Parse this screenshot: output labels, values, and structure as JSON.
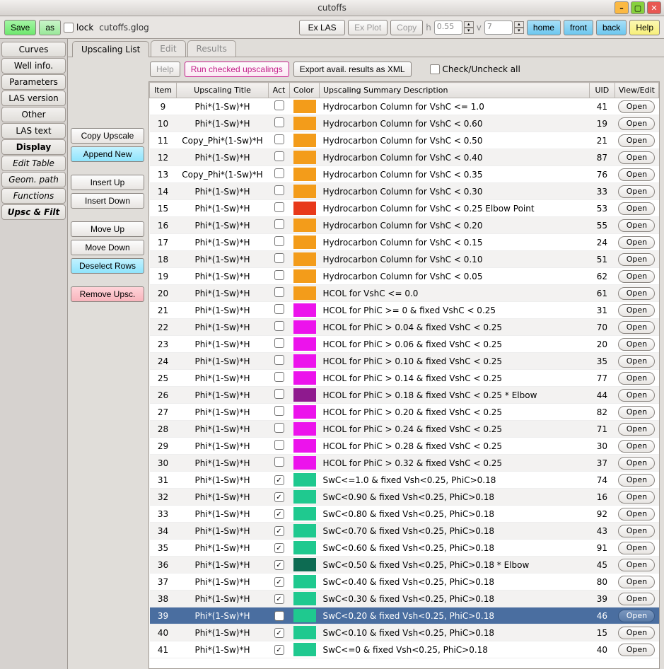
{
  "window": {
    "title": "cutoffs"
  },
  "toolbar": {
    "save": "Save",
    "as": "as",
    "lock": "lock",
    "filename": "cutoffs.glog",
    "exLas": "Ex LAS",
    "exPlot": "Ex Plot",
    "copy": "Copy",
    "h_label": "h",
    "h_value": "0.55",
    "v_label": "v",
    "v_value": "7",
    "home": "home",
    "front": "front",
    "back": "back",
    "help": "Help"
  },
  "nav": {
    "items": [
      {
        "label": "Curves",
        "italic": false,
        "active": false
      },
      {
        "label": "Well info.",
        "italic": false,
        "active": false
      },
      {
        "label": "Parameters",
        "italic": false,
        "active": false
      },
      {
        "label": "LAS version",
        "italic": false,
        "active": false
      },
      {
        "label": "Other",
        "italic": false,
        "active": false
      },
      {
        "label": "LAS text",
        "italic": false,
        "active": false
      },
      {
        "label": "Display",
        "italic": false,
        "active": true
      },
      {
        "label": "Edit Table",
        "italic": true,
        "active": false
      },
      {
        "label": "Geom. path",
        "italic": true,
        "active": false
      },
      {
        "label": "Functions",
        "italic": true,
        "active": false
      },
      {
        "label": "Upsc & Filt",
        "italic": true,
        "active": true
      }
    ]
  },
  "tabs": {
    "items": [
      "Upscaling List",
      "Edit",
      "Results"
    ],
    "active": 0
  },
  "side": {
    "copyUpscale": "Copy Upscale",
    "appendNew": "Append New",
    "insertUp": "Insert Up",
    "insertDown": "Insert Down",
    "moveUp": "Move Up",
    "moveDown": "Move Down",
    "deselectRows": "Deselect Rows",
    "removeUpsc": "Remove Upsc."
  },
  "contentToolbar": {
    "help": "Help",
    "run": "Run checked upscalings",
    "export": "Export avail. results as XML",
    "checkAll": "Check/Uncheck all"
  },
  "table": {
    "headers": {
      "item": "Item",
      "title": "Upscaling Title",
      "act": "Act",
      "color": "Color",
      "summary": "Upscaling Summary Description",
      "uid": "UID",
      "view": "View/Edit"
    },
    "openLabel": "Open",
    "selectedItem": 39,
    "rows": [
      {
        "item": 9,
        "title": "Phi*(1-Sw)*H",
        "act": false,
        "color": "#f39c1a",
        "summary": "Hydrocarbon Column for VshC <= 1.0",
        "uid": 41
      },
      {
        "item": 10,
        "title": "Phi*(1-Sw)*H",
        "act": false,
        "color": "#f39c1a",
        "summary": "Hydrocarbon Column for VshC < 0.60",
        "uid": 19
      },
      {
        "item": 11,
        "title": "Copy_Phi*(1-Sw)*H",
        "act": false,
        "color": "#f39c1a",
        "summary": "Hydrocarbon Column for VshC < 0.50",
        "uid": 21
      },
      {
        "item": 12,
        "title": "Phi*(1-Sw)*H",
        "act": false,
        "color": "#f39c1a",
        "summary": "Hydrocarbon Column for VshC < 0.40",
        "uid": 87
      },
      {
        "item": 13,
        "title": "Copy_Phi*(1-Sw)*H",
        "act": false,
        "color": "#f39c1a",
        "summary": "Hydrocarbon Column for VshC < 0.35",
        "uid": 76
      },
      {
        "item": 14,
        "title": "Phi*(1-Sw)*H",
        "act": false,
        "color": "#f39c1a",
        "summary": "Hydrocarbon Column for VshC < 0.30",
        "uid": 33
      },
      {
        "item": 15,
        "title": "Phi*(1-Sw)*H",
        "act": false,
        "color": "#e8391a",
        "summary": "Hydrocarbon Column for VshC < 0.25 Elbow Point",
        "uid": 53
      },
      {
        "item": 16,
        "title": "Phi*(1-Sw)*H",
        "act": false,
        "color": "#f39c1a",
        "summary": "Hydrocarbon Column for VshC < 0.20",
        "uid": 55
      },
      {
        "item": 17,
        "title": "Phi*(1-Sw)*H",
        "act": false,
        "color": "#f39c1a",
        "summary": "Hydrocarbon Column for VshC < 0.15",
        "uid": 24
      },
      {
        "item": 18,
        "title": "Phi*(1-Sw)*H",
        "act": false,
        "color": "#f39c1a",
        "summary": "Hydrocarbon Column for VshC < 0.10",
        "uid": 51
      },
      {
        "item": 19,
        "title": "Phi*(1-Sw)*H",
        "act": false,
        "color": "#f39c1a",
        "summary": "Hydrocarbon Column for VshC < 0.05",
        "uid": 62
      },
      {
        "item": 20,
        "title": "Phi*(1-Sw)*H",
        "act": false,
        "color": "#f39c1a",
        "summary": "HCOL for VshC <= 0.0",
        "uid": 61
      },
      {
        "item": 21,
        "title": "Phi*(1-Sw)*H",
        "act": false,
        "color": "#ec13ec",
        "summary": "HCOL for PhiC >= 0 & fixed VshC < 0.25",
        "uid": 31
      },
      {
        "item": 22,
        "title": "Phi*(1-Sw)*H",
        "act": false,
        "color": "#ec13ec",
        "summary": "HCOL for PhiC > 0.04 & fixed VshC < 0.25",
        "uid": 70
      },
      {
        "item": 23,
        "title": "Phi*(1-Sw)*H",
        "act": false,
        "color": "#ec13ec",
        "summary": "HCOL for PhiC > 0.06 & fixed VshC < 0.25",
        "uid": 20
      },
      {
        "item": 24,
        "title": "Phi*(1-Sw)*H",
        "act": false,
        "color": "#ec13ec",
        "summary": "HCOL for PhiC > 0.10 & fixed VshC < 0.25",
        "uid": 35
      },
      {
        "item": 25,
        "title": "Phi*(1-Sw)*H",
        "act": false,
        "color": "#ec13ec",
        "summary": "HCOL for PhiC > 0.14 & fixed VshC < 0.25",
        "uid": 77
      },
      {
        "item": 26,
        "title": "Phi*(1-Sw)*H",
        "act": false,
        "color": "#8e1a8e",
        "summary": "HCOL for PhiC > 0.18 & fixed VshC < 0.25 * Elbow",
        "uid": 44
      },
      {
        "item": 27,
        "title": "Phi*(1-Sw)*H",
        "act": false,
        "color": "#ec13ec",
        "summary": "HCOL for PhiC > 0.20 & fixed VshC < 0.25",
        "uid": 82
      },
      {
        "item": 28,
        "title": "Phi*(1-Sw)*H",
        "act": false,
        "color": "#ec13ec",
        "summary": "HCOL for PhiC > 0.24 & fixed VshC < 0.25",
        "uid": 71
      },
      {
        "item": 29,
        "title": "Phi*(1-Sw)*H",
        "act": false,
        "color": "#ec13ec",
        "summary": "HCOL for PhiC > 0.28 & fixed VshC  < 0.25",
        "uid": 30
      },
      {
        "item": 30,
        "title": "Phi*(1-Sw)*H",
        "act": false,
        "color": "#ec13ec",
        "summary": "HCOL for PhiC > 0.32 & fixed VshC < 0.25",
        "uid": 37
      },
      {
        "item": 31,
        "title": "Phi*(1-Sw)*H",
        "act": true,
        "color": "#1fc98f",
        "summary": "SwC<=1.0 & fixed Vsh<0.25, PhiC>0.18",
        "uid": 74
      },
      {
        "item": 32,
        "title": "Phi*(1-Sw)*H",
        "act": true,
        "color": "#1fc98f",
        "summary": "SwC<0.90 & fixed Vsh<0.25, PhiC>0.18",
        "uid": 16
      },
      {
        "item": 33,
        "title": "Phi*(1-Sw)*H",
        "act": true,
        "color": "#1fc98f",
        "summary": "SwC<0.80 & fixed Vsh<0.25, PhiC>0.18",
        "uid": 92
      },
      {
        "item": 34,
        "title": "Phi*(1-Sw)*H",
        "act": true,
        "color": "#1fc98f",
        "summary": "SwC<0.70 & fixed Vsh<0.25, PhiC>0.18",
        "uid": 43
      },
      {
        "item": 35,
        "title": "Phi*(1-Sw)*H",
        "act": true,
        "color": "#1fc98f",
        "summary": "SwC<0.60 & fixed Vsh<0.25, PhiC>0.18",
        "uid": 91
      },
      {
        "item": 36,
        "title": "Phi*(1-Sw)*H",
        "act": true,
        "color": "#0d6b52",
        "summary": "SwC<0.50 & fixed Vsh<0.25, PhiC>0.18 * Elbow",
        "uid": 45
      },
      {
        "item": 37,
        "title": "Phi*(1-Sw)*H",
        "act": true,
        "color": "#1fc98f",
        "summary": "SwC<0.40 & fixed Vsh<0.25, PhiC>0.18",
        "uid": 80
      },
      {
        "item": 38,
        "title": "Phi*(1-Sw)*H",
        "act": true,
        "color": "#1fc98f",
        "summary": "SwC<0.30 & fixed Vsh<0.25, PhiC>0.18",
        "uid": 39
      },
      {
        "item": 39,
        "title": "Phi*(1-Sw)*H",
        "act": true,
        "color": "#1fc98f",
        "summary": "SwC<0.20 & fixed Vsh<0.25, PhiC>0.18",
        "uid": 46
      },
      {
        "item": 40,
        "title": "Phi*(1-Sw)*H",
        "act": true,
        "color": "#1fc98f",
        "summary": "SwC<0.10 & fixed Vsh<0.25, PhiC>0.18",
        "uid": 15
      },
      {
        "item": 41,
        "title": "Phi*(1-Sw)*H",
        "act": true,
        "color": "#1fc98f",
        "summary": "SwC<=0 & fixed Vsh<0.25, PhiC>0.18",
        "uid": 40
      }
    ]
  }
}
